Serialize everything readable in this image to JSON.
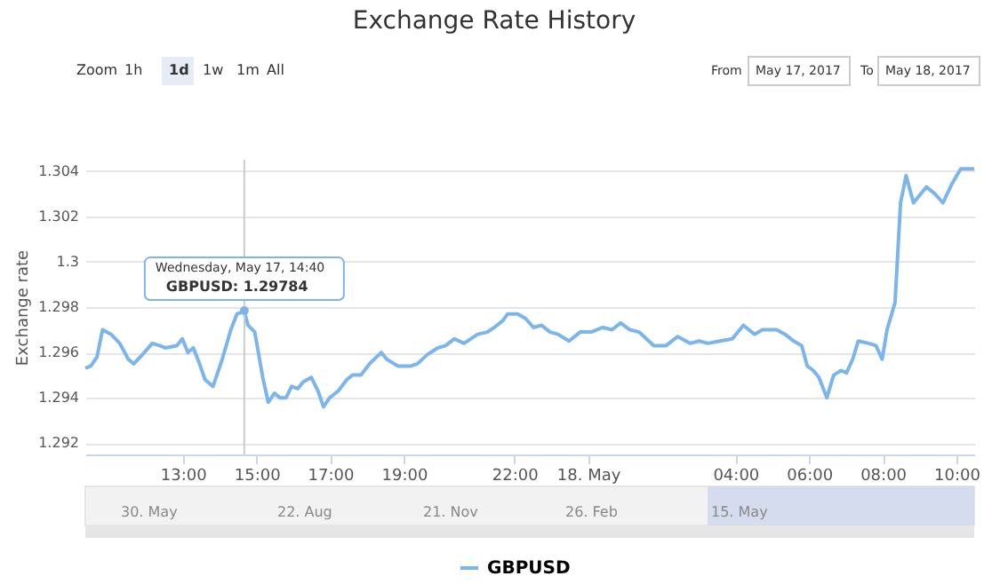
{
  "chart_data": {
    "type": "line",
    "title": "Exchange Rate History",
    "ylabel": "Exchange rate",
    "x": [
      "2017-05-17T10:21",
      "2017-05-17T10:30",
      "2017-05-17T10:40",
      "2017-05-17T10:49",
      "2017-05-17T11:03",
      "2017-05-17T11:17",
      "2017-05-17T11:31",
      "2017-05-17T11:40",
      "2017-05-17T11:54",
      "2017-05-17T12:10",
      "2017-05-17T12:22",
      "2017-05-17T12:31",
      "2017-05-17T12:50",
      "2017-05-17T12:59",
      "2017-05-17T13:08",
      "2017-05-17T13:17",
      "2017-05-17T13:27",
      "2017-05-17T13:36",
      "2017-05-17T13:49",
      "2017-05-17T14:04",
      "2017-05-17T14:18",
      "2017-05-17T14:28",
      "2017-05-17T14:40",
      "2017-05-17T14:46",
      "2017-05-17T14:57",
      "2017-05-17T15:10",
      "2017-05-17T15:19",
      "2017-05-17T15:29",
      "2017-05-17T15:38",
      "2017-05-17T15:48",
      "2017-05-17T15:57",
      "2017-05-17T16:07",
      "2017-05-17T16:16",
      "2017-05-17T16:29",
      "2017-05-17T16:40",
      "2017-05-17T16:49",
      "2017-05-17T16:59",
      "2017-05-17T17:13",
      "2017-05-17T17:27",
      "2017-05-17T17:36",
      "2017-05-17T17:50",
      "2017-05-17T18:04",
      "2017-05-17T18:23",
      "2017-05-17T18:32",
      "2017-05-17T18:50",
      "2017-05-17T19:11",
      "2017-05-17T19:22",
      "2017-05-17T19:38",
      "2017-05-17T19:55",
      "2017-05-17T20:08",
      "2017-05-17T20:22",
      "2017-05-17T20:38",
      "2017-05-17T21:00",
      "2017-05-17T21:16",
      "2017-05-17T21:27",
      "2017-05-17T21:41",
      "2017-05-17T21:49",
      "2017-05-17T22:05",
      "2017-05-17T22:18",
      "2017-05-17T22:31",
      "2017-05-17T22:44",
      "2017-05-17T22:58",
      "2017-05-17T23:11",
      "2017-05-17T23:29",
      "2017-05-17T23:47",
      "2017-05-18T00:05",
      "2017-05-18T00:24",
      "2017-05-18T00:39",
      "2017-05-18T00:53",
      "2017-05-18T01:08",
      "2017-05-18T01:23",
      "2017-05-18T01:47",
      "2017-05-18T02:07",
      "2017-05-18T02:26",
      "2017-05-18T02:46",
      "2017-05-18T03:01",
      "2017-05-18T03:15",
      "2017-05-18T03:35",
      "2017-05-18T03:55",
      "2017-05-18T04:13",
      "2017-05-18T04:31",
      "2017-05-18T04:44",
      "2017-05-18T05:07",
      "2017-05-18T05:21",
      "2017-05-18T05:35",
      "2017-05-18T05:48",
      "2017-05-18T05:57",
      "2017-05-18T06:07",
      "2017-05-18T06:16",
      "2017-05-18T06:29",
      "2017-05-18T06:40",
      "2017-05-18T06:52",
      "2017-05-18T07:01",
      "2017-05-18T07:11",
      "2017-05-18T07:20",
      "2017-05-18T07:37",
      "2017-05-18T07:49",
      "2017-05-18T07:59",
      "2017-05-18T08:07",
      "2017-05-18T08:20",
      "2017-05-18T08:29",
      "2017-05-18T08:38",
      "2017-05-18T08:50",
      "2017-05-18T09:11",
      "2017-05-18T09:25",
      "2017-05-18T09:38",
      "2017-05-18T09:52",
      "2017-05-18T10:07",
      "2017-05-18T10:29"
    ],
    "series": [
      {
        "name": "GBPUSD",
        "color": "#7cb5ec",
        "values": [
          1.2953,
          1.2954,
          1.2958,
          1.297,
          1.2968,
          1.2964,
          1.2957,
          1.2955,
          1.2959,
          1.2964,
          1.2963,
          1.2962,
          1.2963,
          1.2966,
          1.296,
          1.2962,
          1.2955,
          1.2948,
          1.2945,
          1.2957,
          1.297,
          1.2977,
          1.2978,
          1.2972,
          1.2969,
          1.2949,
          1.2938,
          1.2942,
          1.294,
          1.294,
          1.2945,
          1.2944,
          1.2947,
          1.2949,
          1.2943,
          1.2936,
          1.294,
          1.2943,
          1.2948,
          1.295,
          1.295,
          1.2955,
          1.296,
          1.2957,
          1.2954,
          1.2954,
          1.2955,
          1.2959,
          1.2962,
          1.2963,
          1.2966,
          1.2964,
          1.2968,
          1.2969,
          1.2971,
          1.2974,
          1.2977,
          1.2977,
          1.2975,
          1.2971,
          1.2972,
          1.2969,
          1.2968,
          1.2965,
          1.2969,
          1.2969,
          1.2971,
          1.297,
          1.2973,
          1.297,
          1.2969,
          1.2963,
          1.2963,
          1.2967,
          1.2964,
          1.2965,
          1.2964,
          1.2965,
          1.2966,
          1.2972,
          1.2968,
          1.297,
          1.297,
          1.2968,
          1.2965,
          1.2963,
          1.2954,
          1.2952,
          1.2949,
          1.294,
          1.295,
          1.2952,
          1.2951,
          1.2957,
          1.2965,
          1.2964,
          1.2963,
          1.2957,
          1.297,
          1.2982,
          1.3026,
          1.3038,
          1.3026,
          1.3033,
          1.303,
          1.3026,
          1.3034,
          1.3041,
          1.3041
        ]
      }
    ],
    "xlim": [
      "2017-05-17T10:21",
      "2017-05-18T10:29"
    ],
    "xticks": [
      {
        "value": "2017-05-17T13:00",
        "label": "13:00"
      },
      {
        "value": "2017-05-17T15:00",
        "label": "15:00"
      },
      {
        "value": "2017-05-17T17:00",
        "label": "17:00"
      },
      {
        "value": "2017-05-17T19:00",
        "label": "19:00"
      },
      {
        "value": "2017-05-17T22:00",
        "label": "22:00"
      },
      {
        "value": "2017-05-18T00:00",
        "label": "18. May"
      },
      {
        "value": "2017-05-18T04:00",
        "label": "04:00"
      },
      {
        "value": "2017-05-18T06:00",
        "label": "06:00"
      },
      {
        "value": "2017-05-18T08:00",
        "label": "08:00"
      },
      {
        "value": "2017-05-18T10:00",
        "label": "10:00"
      }
    ],
    "ylim": [
      1.2915,
      1.3045
    ],
    "yticks": [
      1.292,
      1.294,
      1.296,
      1.298,
      1.3,
      1.302,
      1.304
    ],
    "grid": "y",
    "legend": "bottom",
    "marker": "none",
    "line_style": "solid",
    "ref_lines": [
      {
        "axis": "x",
        "value": "2017-05-17T14:40",
        "color": "#cccccc"
      }
    ],
    "annotations": [
      "Zoom",
      "1h",
      "1d",
      "1w",
      "1m",
      "All",
      "From",
      "May 17, 2017",
      "To",
      "May 18, 2017",
      "30. May",
      "22. Aug",
      "21. Nov",
      "26. Feb",
      "15. May",
      {
        "text": "Wednesday, May 17, 14:40",
        "x": "2017-05-17T14:40",
        "y": 1.29784
      },
      {
        "text": "GBPUSD: 1.29784",
        "x": "2017-05-17T14:40",
        "y": 1.29784
      }
    ]
  }
}
